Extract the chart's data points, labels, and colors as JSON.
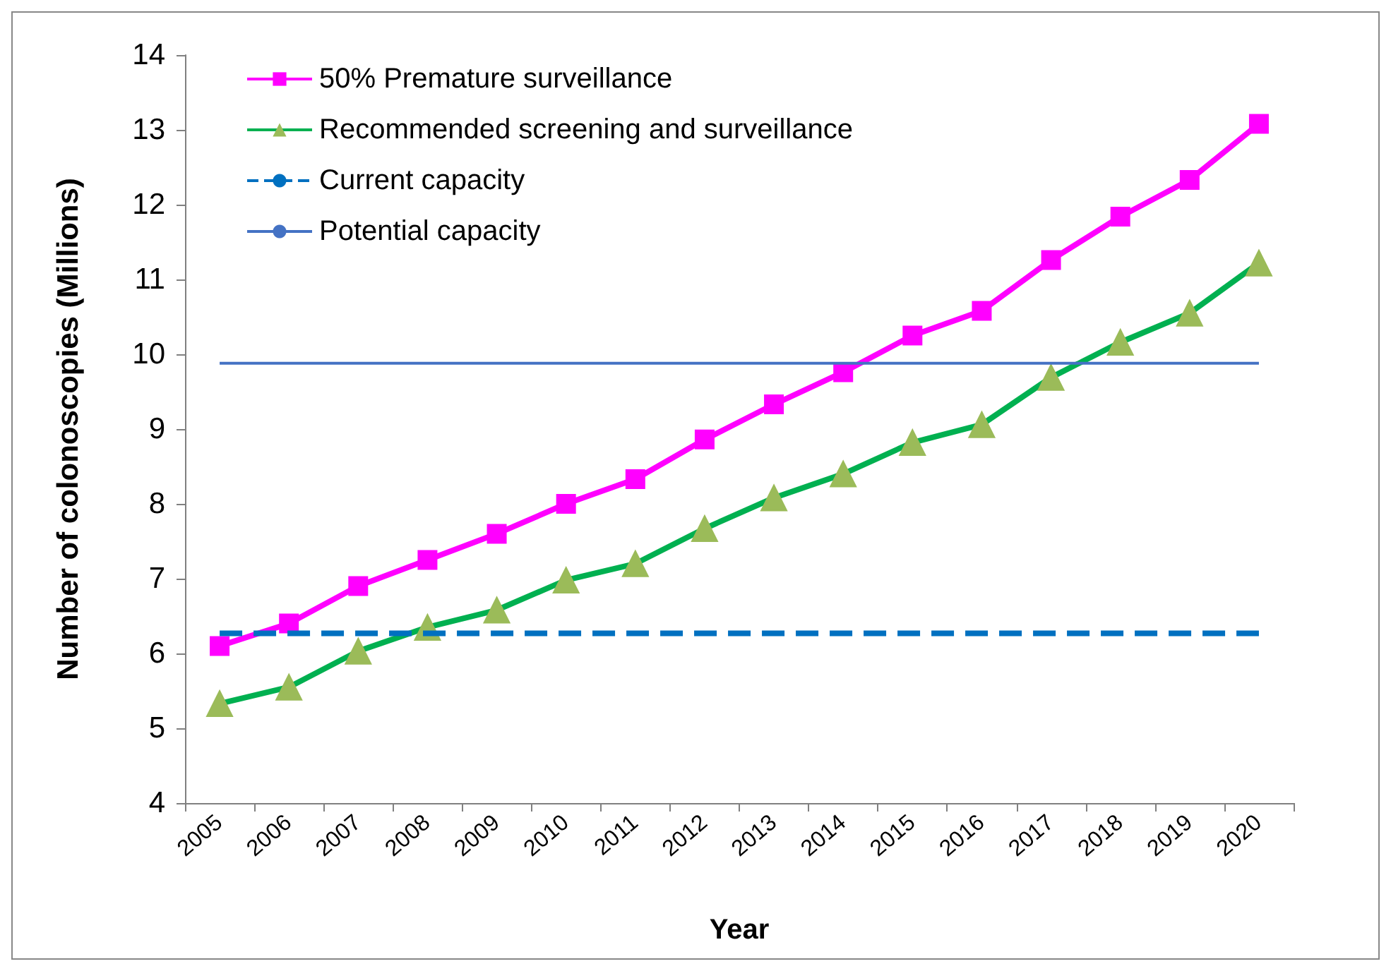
{
  "chart_data": {
    "type": "line",
    "xlabel": "Year",
    "ylabel": "Number of colonoscopies (Millions)",
    "categories": [
      "2005",
      "2006",
      "2007",
      "2008",
      "2009",
      "2010",
      "2011",
      "2012",
      "2013",
      "2014",
      "2015",
      "2016",
      "2017",
      "2018",
      "2019",
      "2020"
    ],
    "series": [
      {
        "name": "50% Premature surveillance",
        "color": "#ff00ff",
        "marker": "square",
        "line_style": "solid",
        "values": [
          6.1,
          6.4,
          6.9,
          7.25,
          7.6,
          8.0,
          8.33,
          8.86,
          9.33,
          9.76,
          10.25,
          10.58,
          11.26,
          11.84,
          12.33,
          13.08
        ]
      },
      {
        "name": "Recommended screening and surveillance",
        "color": "#00b050",
        "marker": "triangle",
        "line_style": "solid",
        "values": [
          5.33,
          5.55,
          6.03,
          6.35,
          6.58,
          6.98,
          7.2,
          7.67,
          8.08,
          8.4,
          8.82,
          9.06,
          9.69,
          10.16,
          10.55,
          11.22
        ]
      },
      {
        "name": "Current capacity",
        "color": "#0070c0",
        "marker": "none",
        "line_style": "dashed",
        "values": [
          6.27,
          6.27,
          6.27,
          6.27,
          6.27,
          6.27,
          6.27,
          6.27,
          6.27,
          6.27,
          6.27,
          6.27,
          6.27,
          6.27,
          6.27,
          6.27
        ]
      },
      {
        "name": "Potential capacity",
        "color": "#4472c4",
        "marker": "none",
        "line_style": "solid",
        "values": [
          9.88,
          9.88,
          9.88,
          9.88,
          9.88,
          9.88,
          9.88,
          9.88,
          9.88,
          9.88,
          9.88,
          9.88,
          9.88,
          9.88,
          9.88,
          9.88
        ]
      }
    ],
    "ylim": [
      4,
      14
    ],
    "yticks": [
      4,
      5,
      6,
      7,
      8,
      9,
      10,
      11,
      12,
      13,
      14
    ],
    "grid": false,
    "legend": "top left"
  }
}
